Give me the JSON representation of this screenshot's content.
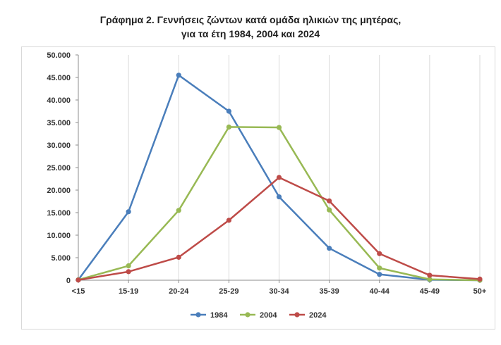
{
  "chart_data": {
    "type": "line",
    "title": "Γράφημα 2.  Γεννήσεις ζώντων κατά ομάδα ηλικιών της μητέρας,",
    "subtitle": "για τα έτη 1984, 2004 και 2024",
    "xlabel": "",
    "ylabel": "",
    "categories": [
      "<15",
      "15-19",
      "20-24",
      "25-29",
      "30-34",
      "35-39",
      "40-44",
      "45-49",
      "50+"
    ],
    "ylim": [
      0,
      50000
    ],
    "yticks": [
      0,
      5000,
      10000,
      15000,
      20000,
      25000,
      30000,
      35000,
      40000,
      45000,
      50000
    ],
    "ytick_labels": [
      "0",
      "5.000",
      "10.000",
      "15.000",
      "20.000",
      "25.000",
      "30.000",
      "35.000",
      "40.000",
      "45.000",
      "50.000"
    ],
    "grid": "vertical",
    "legend_position": "bottom",
    "series": [
      {
        "name": "1984",
        "color": "#4a7ebb",
        "values": [
          100,
          15200,
          45500,
          37500,
          18500,
          7100,
          1300,
          100,
          0
        ]
      },
      {
        "name": "2004",
        "color": "#98b954",
        "values": [
          100,
          3200,
          15500,
          34000,
          33900,
          15600,
          2700,
          200,
          0
        ]
      },
      {
        "name": "2024",
        "color": "#be4b48",
        "values": [
          50,
          1900,
          5100,
          13300,
          22800,
          17600,
          5900,
          1100,
          250
        ]
      }
    ]
  }
}
